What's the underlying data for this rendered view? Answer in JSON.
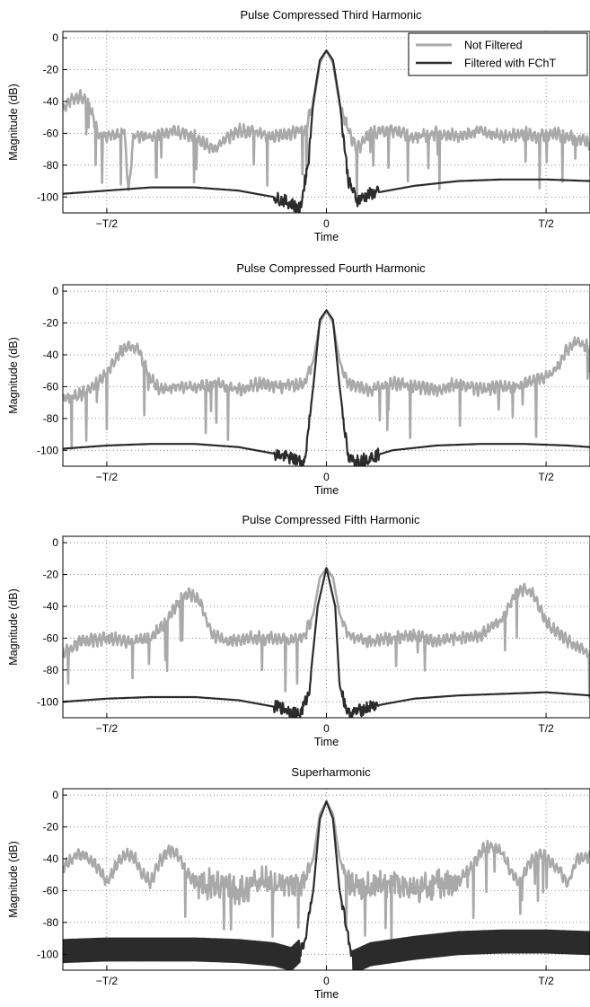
{
  "colors": {
    "not_filtered": "#a9a9a9",
    "filtered": "#2b2b2b",
    "grid": "#666666",
    "axes": "#000000"
  },
  "chart_data": [
    {
      "type": "line",
      "title": "Pulse Compressed Third Harmonic",
      "xlabel": "Time",
      "ylabel": "Magnitude (dB)",
      "ylim": [
        -110,
        4
      ],
      "xlim": [
        -0.6,
        0.6
      ],
      "x_ticks": [
        {
          "value": -0.5,
          "label": "−T/2"
        },
        {
          "value": 0,
          "label": "0"
        },
        {
          "value": 0.5,
          "label": "T/2"
        }
      ],
      "y_ticks": [
        0,
        -20,
        -40,
        -60,
        -80,
        -100
      ],
      "grid": true,
      "legend": {
        "placement": "top-right",
        "entries": [
          "Not Filtered",
          "Filtered with FChT"
        ]
      },
      "series": [
        {
          "name": "Not Filtered",
          "style": "unfiltered",
          "points": [
            [
              -0.6,
              -45
            ],
            [
              -0.58,
              -38
            ],
            [
              -0.56,
              -37
            ],
            [
              -0.54,
              -42
            ],
            [
              -0.52,
              -60
            ],
            [
              -0.5,
              -61
            ],
            [
              -0.48,
              -62
            ],
            [
              -0.46,
              -58
            ],
            [
              -0.45,
              -97
            ],
            [
              -0.44,
              -62
            ],
            [
              -0.4,
              -62
            ],
            [
              -0.35,
              -58
            ],
            [
              -0.3,
              -62
            ],
            [
              -0.26,
              -70
            ],
            [
              -0.2,
              -58
            ],
            [
              -0.16,
              -60
            ],
            [
              -0.12,
              -62
            ],
            [
              -0.08,
              -60
            ],
            [
              -0.05,
              -58
            ],
            [
              -0.03,
              -42
            ],
            [
              -0.015,
              -16
            ],
            [
              0,
              -8
            ],
            [
              0.015,
              -16
            ],
            [
              0.03,
              -42
            ],
            [
              0.05,
              -58
            ],
            [
              0.07,
              -70
            ],
            [
              0.1,
              -60
            ],
            [
              0.15,
              -58
            ],
            [
              0.2,
              -62
            ],
            [
              0.25,
              -60
            ],
            [
              0.3,
              -62
            ],
            [
              0.35,
              -58
            ],
            [
              0.4,
              -62
            ],
            [
              0.45,
              -60
            ],
            [
              0.48,
              -62
            ],
            [
              0.52,
              -60
            ],
            [
              0.55,
              -62
            ],
            [
              0.58,
              -64
            ],
            [
              0.6,
              -66
            ]
          ]
        },
        {
          "name": "Filtered with FChT",
          "style": "filtered",
          "points": [
            [
              -0.6,
              -98
            ],
            [
              -0.5,
              -96
            ],
            [
              -0.4,
              -94
            ],
            [
              -0.3,
              -94
            ],
            [
              -0.2,
              -96
            ],
            [
              -0.12,
              -100
            ],
            [
              -0.08,
              -104
            ],
            [
              -0.06,
              -108
            ],
            [
              -0.04,
              -75
            ],
            [
              -0.03,
              -40
            ],
            [
              -0.015,
              -14
            ],
            [
              0,
              -8
            ],
            [
              0.015,
              -14
            ],
            [
              0.03,
              -40
            ],
            [
              0.05,
              -90
            ],
            [
              0.07,
              -102
            ],
            [
              0.1,
              -98
            ],
            [
              0.2,
              -93
            ],
            [
              0.3,
              -90
            ],
            [
              0.4,
              -89
            ],
            [
              0.5,
              -89
            ],
            [
              0.6,
              -90
            ]
          ]
        }
      ]
    },
    {
      "type": "line",
      "title": "Pulse Compressed Fourth Harmonic",
      "xlabel": "Time",
      "ylabel": "Magnitude (dB)",
      "ylim": [
        -110,
        4
      ],
      "xlim": [
        -0.6,
        0.6
      ],
      "x_ticks": [
        {
          "value": -0.5,
          "label": "−T/2"
        },
        {
          "value": 0,
          "label": "0"
        },
        {
          "value": 0.5,
          "label": "T/2"
        }
      ],
      "y_ticks": [
        0,
        -20,
        -40,
        -60,
        -80,
        -100
      ],
      "grid": true,
      "series": [
        {
          "name": "Not Filtered",
          "style": "unfiltered",
          "points": [
            [
              -0.6,
              -68
            ],
            [
              -0.56,
              -65
            ],
            [
              -0.52,
              -58
            ],
            [
              -0.5,
              -52
            ],
            [
              -0.47,
              -38
            ],
            [
              -0.45,
              -34
            ],
            [
              -0.43,
              -36
            ],
            [
              -0.4,
              -55
            ],
            [
              -0.38,
              -62
            ],
            [
              -0.34,
              -60
            ],
            [
              -0.3,
              -60
            ],
            [
              -0.25,
              -58
            ],
            [
              -0.2,
              -62
            ],
            [
              -0.15,
              -58
            ],
            [
              -0.1,
              -60
            ],
            [
              -0.05,
              -58
            ],
            [
              -0.03,
              -44
            ],
            [
              -0.015,
              -20
            ],
            [
              0,
              -12
            ],
            [
              0.015,
              -20
            ],
            [
              0.03,
              -44
            ],
            [
              0.05,
              -58
            ],
            [
              0.1,
              -62
            ],
            [
              0.15,
              -58
            ],
            [
              0.2,
              -60
            ],
            [
              0.25,
              -62
            ],
            [
              0.3,
              -58
            ],
            [
              0.35,
              -62
            ],
            [
              0.4,
              -60
            ],
            [
              0.44,
              -60
            ],
            [
              0.48,
              -56
            ],
            [
              0.52,
              -50
            ],
            [
              0.55,
              -36
            ],
            [
              0.57,
              -32
            ],
            [
              0.6,
              -36
            ]
          ]
        },
        {
          "name": "Filtered with FChT",
          "style": "filtered",
          "points": [
            [
              -0.6,
              -99
            ],
            [
              -0.5,
              -97
            ],
            [
              -0.4,
              -96
            ],
            [
              -0.3,
              -96
            ],
            [
              -0.2,
              -98
            ],
            [
              -0.12,
              -102
            ],
            [
              -0.07,
              -106
            ],
            [
              -0.05,
              -108
            ],
            [
              -0.03,
              -60
            ],
            [
              -0.015,
              -18
            ],
            [
              0,
              -12
            ],
            [
              0.015,
              -18
            ],
            [
              0.03,
              -60
            ],
            [
              0.05,
              -106
            ],
            [
              0.08,
              -106
            ],
            [
              0.15,
              -100
            ],
            [
              0.25,
              -97
            ],
            [
              0.35,
              -96
            ],
            [
              0.45,
              -96
            ],
            [
              0.55,
              -97
            ],
            [
              0.6,
              -98
            ]
          ]
        }
      ]
    },
    {
      "type": "line",
      "title": "Pulse Compressed Fifth Harmonic",
      "xlabel": "Time",
      "ylabel": "Magnitude (dB)",
      "ylim": [
        -110,
        4
      ],
      "xlim": [
        -0.6,
        0.6
      ],
      "x_ticks": [
        {
          "value": -0.5,
          "label": "−T/2"
        },
        {
          "value": 0,
          "label": "0"
        },
        {
          "value": 0.5,
          "label": "T/2"
        }
      ],
      "y_ticks": [
        0,
        -20,
        -40,
        -60,
        -80,
        -100
      ],
      "grid": true,
      "series": [
        {
          "name": "Not Filtered",
          "style": "unfiltered",
          "points": [
            [
              -0.6,
              -70
            ],
            [
              -0.56,
              -62
            ],
            [
              -0.5,
              -60
            ],
            [
              -0.45,
              -62
            ],
            [
              -0.4,
              -60
            ],
            [
              -0.36,
              -48
            ],
            [
              -0.33,
              -34
            ],
            [
              -0.31,
              -32
            ],
            [
              -0.29,
              -36
            ],
            [
              -0.26,
              -58
            ],
            [
              -0.22,
              -62
            ],
            [
              -0.18,
              -60
            ],
            [
              -0.12,
              -60
            ],
            [
              -0.08,
              -62
            ],
            [
              -0.05,
              -58
            ],
            [
              -0.03,
              -45
            ],
            [
              -0.015,
              -22
            ],
            [
              0,
              -16
            ],
            [
              0.015,
              -22
            ],
            [
              0.03,
              -45
            ],
            [
              0.05,
              -58
            ],
            [
              0.1,
              -62
            ],
            [
              0.15,
              -60
            ],
            [
              0.2,
              -58
            ],
            [
              0.25,
              -62
            ],
            [
              0.3,
              -60
            ],
            [
              0.35,
              -58
            ],
            [
              0.4,
              -48
            ],
            [
              0.43,
              -32
            ],
            [
              0.45,
              -29
            ],
            [
              0.47,
              -32
            ],
            [
              0.5,
              -50
            ],
            [
              0.55,
              -62
            ],
            [
              0.6,
              -70
            ]
          ]
        },
        {
          "name": "Filtered with FChT",
          "style": "filtered",
          "points": [
            [
              -0.6,
              -100
            ],
            [
              -0.5,
              -98
            ],
            [
              -0.4,
              -97
            ],
            [
              -0.3,
              -97
            ],
            [
              -0.2,
              -99
            ],
            [
              -0.1,
              -104
            ],
            [
              -0.06,
              -108
            ],
            [
              -0.04,
              -95
            ],
            [
              -0.02,
              -40
            ],
            [
              0,
              -16
            ],
            [
              0.02,
              -40
            ],
            [
              0.03,
              -90
            ],
            [
              0.05,
              -108
            ],
            [
              0.1,
              -103
            ],
            [
              0.2,
              -98
            ],
            [
              0.3,
              -96
            ],
            [
              0.4,
              -95
            ],
            [
              0.5,
              -94
            ],
            [
              0.6,
              -96
            ]
          ]
        }
      ]
    },
    {
      "type": "line",
      "title": "Superharmonic",
      "xlabel": "Time",
      "ylabel": "Magnitude (dB)",
      "ylim": [
        -110,
        4
      ],
      "xlim": [
        -0.6,
        0.6
      ],
      "x_ticks": [
        {
          "value": -0.5,
          "label": "−T/2"
        },
        {
          "value": 0,
          "label": "0"
        },
        {
          "value": 0.5,
          "label": "T/2"
        }
      ],
      "y_ticks": [
        0,
        -20,
        -40,
        -60,
        -80,
        -100
      ],
      "grid": true,
      "series": [
        {
          "name": "Not Filtered",
          "style": "unfiltered",
          "points": [
            [
              -0.6,
              -45
            ],
            [
              -0.57,
              -38
            ],
            [
              -0.55,
              -38
            ],
            [
              -0.52,
              -45
            ],
            [
              -0.5,
              -55
            ],
            [
              -0.48,
              -45
            ],
            [
              -0.46,
              -38
            ],
            [
              -0.44,
              -38
            ],
            [
              -0.42,
              -48
            ],
            [
              -0.4,
              -55
            ],
            [
              -0.38,
              -42
            ],
            [
              -0.36,
              -35
            ],
            [
              -0.34,
              -36
            ],
            [
              -0.32,
              -48
            ],
            [
              -0.3,
              -55
            ],
            [
              -0.25,
              -55
            ],
            [
              -0.2,
              -60
            ],
            [
              -0.15,
              -55
            ],
            [
              -0.1,
              -58
            ],
            [
              -0.05,
              -55
            ],
            [
              -0.03,
              -40
            ],
            [
              -0.015,
              -12
            ],
            [
              0,
              -4
            ],
            [
              0.015,
              -12
            ],
            [
              0.03,
              -40
            ],
            [
              0.05,
              -55
            ],
            [
              0.1,
              -58
            ],
            [
              0.15,
              -55
            ],
            [
              0.2,
              -60
            ],
            [
              0.25,
              -55
            ],
            [
              0.3,
              -55
            ],
            [
              0.33,
              -45
            ],
            [
              0.36,
              -33
            ],
            [
              0.38,
              -32
            ],
            [
              0.4,
              -36
            ],
            [
              0.42,
              -48
            ],
            [
              0.44,
              -55
            ],
            [
              0.46,
              -44
            ],
            [
              0.48,
              -38
            ],
            [
              0.5,
              -38
            ],
            [
              0.52,
              -45
            ],
            [
              0.55,
              -55
            ],
            [
              0.57,
              -40
            ],
            [
              0.6,
              -38
            ]
          ]
        },
        {
          "name": "Filtered with FChT",
          "style": "filtered",
          "points": [
            [
              -0.6,
              -98
            ],
            [
              -0.5,
              -97
            ],
            [
              -0.4,
              -97
            ],
            [
              -0.3,
              -97
            ],
            [
              -0.2,
              -98
            ],
            [
              -0.12,
              -100
            ],
            [
              -0.08,
              -103
            ],
            [
              -0.05,
              -95
            ],
            [
              -0.03,
              -60
            ],
            [
              -0.015,
              -15
            ],
            [
              0,
              -4
            ],
            [
              0.015,
              -15
            ],
            [
              0.03,
              -60
            ],
            [
              0.06,
              -105
            ],
            [
              0.1,
              -100
            ],
            [
              0.2,
              -96
            ],
            [
              0.3,
              -93
            ],
            [
              0.4,
              -92
            ],
            [
              0.5,
              -92
            ],
            [
              0.6,
              -93
            ]
          ]
        }
      ]
    }
  ]
}
